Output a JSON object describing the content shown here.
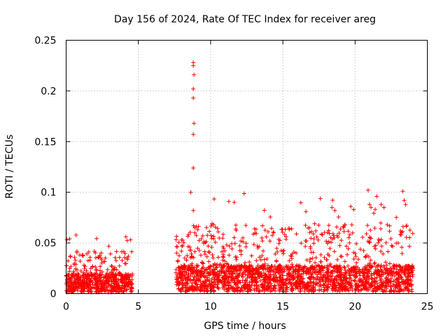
{
  "chart_data": {
    "type": "scatter",
    "title": "Day 156 of 2024, Rate Of TEC Index for receiver areg",
    "xlabel": "GPS time / hours",
    "ylabel": "ROTI / TECUs",
    "xlim": [
      0,
      25
    ],
    "ylim": [
      0,
      0.25
    ],
    "x_ticks": [
      0,
      5,
      10,
      15,
      20,
      25
    ],
    "x_tick_labels": [
      "0",
      "5",
      "10",
      "15",
      "20",
      "25"
    ],
    "y_ticks": [
      0,
      0.05,
      0.1,
      0.15,
      0.2,
      0.25
    ],
    "y_tick_labels": [
      "0",
      "0.05",
      "0.1",
      "0.15",
      "0.2",
      "0.25"
    ],
    "grid": true,
    "marker": "+",
    "color": "#ff0000",
    "series": [
      {
        "name": "ROTI",
        "segments": [
          {
            "x_start": 0.0,
            "x_end": 4.6,
            "baseline": 0.014,
            "peak": 0.06
          },
          {
            "x_start": 7.6,
            "x_end": 24.0,
            "baseline": 0.02,
            "peak": 0.1
          }
        ],
        "outliers": [
          [
            8.8,
            0.228
          ],
          [
            8.8,
            0.225
          ],
          [
            8.85,
            0.216
          ],
          [
            8.8,
            0.202
          ],
          [
            8.8,
            0.193
          ],
          [
            8.85,
            0.168
          ],
          [
            8.8,
            0.157
          ],
          [
            8.8,
            0.124
          ],
          [
            8.8,
            0.082
          ],
          [
            8.9,
            0.065
          ],
          [
            8.9,
            0.06
          ],
          [
            10.1,
            0.069
          ],
          [
            10.2,
            0.068
          ],
          [
            12.1,
            0.052
          ],
          [
            17.2,
            0.069
          ],
          [
            18.4,
            0.085
          ],
          [
            18.6,
            0.082
          ],
          [
            19.7,
            0.086
          ],
          [
            19.9,
            0.083
          ],
          [
            20.9,
            0.102
          ],
          [
            21.0,
            0.088
          ],
          [
            21.1,
            0.085
          ],
          [
            21.5,
            0.096
          ],
          [
            21.8,
            0.088
          ],
          [
            22.0,
            0.085
          ],
          [
            23.3,
            0.101
          ],
          [
            23.4,
            0.092
          ],
          [
            23.5,
            0.088
          ]
        ]
      }
    ]
  }
}
